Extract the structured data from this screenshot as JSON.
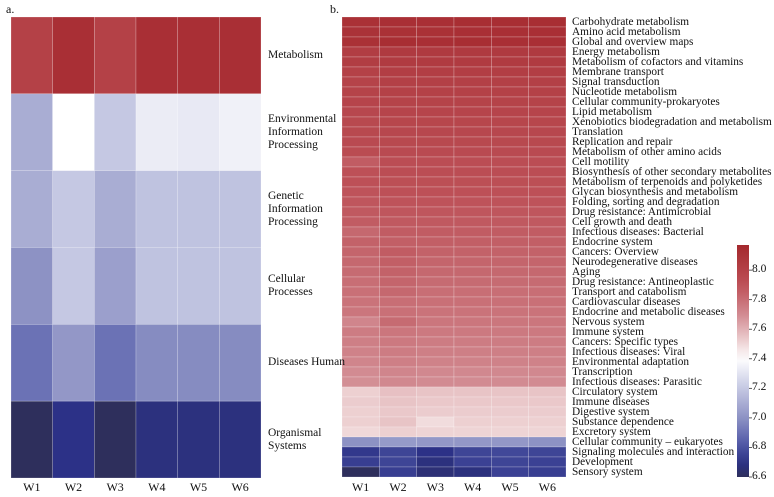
{
  "chart_data": [
    {
      "panel_label": "a.",
      "type": "heatmap",
      "columns": [
        "W1",
        "W2",
        "W3",
        "W4",
        "W5",
        "W6"
      ],
      "rows": [
        {
          "label": "Metabolism",
          "values": [
            8.0,
            8.12,
            8.0,
            8.12,
            8.12,
            8.12
          ]
        },
        {
          "label": "Environmental Information Processing",
          "values": [
            7.1,
            7.4,
            7.2,
            7.33,
            7.32,
            7.35
          ]
        },
        {
          "label": "Genetic Information Processing",
          "values": [
            7.1,
            7.2,
            7.1,
            7.18,
            7.18,
            7.18
          ]
        },
        {
          "label": "Cellular Processes",
          "values": [
            7.0,
            7.2,
            7.05,
            7.18,
            7.18,
            7.18
          ]
        },
        {
          "label": "Diseases Human",
          "values": [
            6.9,
            7.02,
            6.9,
            6.98,
            6.98,
            6.98
          ]
        },
        {
          "label": "Organismal Systems",
          "values": [
            6.6,
            6.7,
            6.6,
            6.68,
            6.68,
            6.68
          ]
        }
      ]
    },
    {
      "panel_label": "b.",
      "type": "heatmap",
      "columns": [
        "W1",
        "W2",
        "W3",
        "W4",
        "W5",
        "W6"
      ],
      "colorbar": {
        "range": [
          6.6,
          8.17
        ],
        "ticks": [
          "8.0",
          "7.8",
          "7.6",
          "7.4",
          "7.2",
          "7.0",
          "6.8",
          "6.6"
        ],
        "colors": {
          "low": "#2e2f5c",
          "mid": "#ffffff",
          "high": "#a4282d"
        }
      },
      "rows": [
        {
          "label": "Carbohydrate metabolism",
          "values": [
            8.11,
            8.12,
            8.12,
            8.13,
            8.13,
            8.13
          ]
        },
        {
          "label": "Amino acid metabolism",
          "values": [
            8.1,
            8.11,
            8.11,
            8.12,
            8.12,
            8.12
          ]
        },
        {
          "label": "Global and overview maps",
          "values": [
            8.11,
            8.13,
            8.12,
            8.13,
            8.12,
            8.12
          ]
        },
        {
          "label": "Energy metabolism",
          "values": [
            8.03,
            8.05,
            8.05,
            8.05,
            8.05,
            8.05
          ]
        },
        {
          "label": "Metabolism of cofactors and vitamins",
          "values": [
            8.03,
            8.04,
            8.04,
            8.04,
            8.04,
            8.04
          ]
        },
        {
          "label": "Membrane transport",
          "values": [
            8.0,
            8.02,
            8.02,
            8.02,
            8.02,
            8.02
          ]
        },
        {
          "label": "Signal transduction",
          "values": [
            7.99,
            8.01,
            8.01,
            8.01,
            8.01,
            8.01
          ]
        },
        {
          "label": "Nucleotide metabolism",
          "values": [
            7.99,
            8.0,
            8.0,
            8.0,
            8.0,
            8.0
          ]
        },
        {
          "label": "Cellular community-prokaryotes",
          "values": [
            7.98,
            7.99,
            7.99,
            7.99,
            7.99,
            7.99
          ]
        },
        {
          "label": "Lipid metabolism",
          "values": [
            7.96,
            7.98,
            7.98,
            7.98,
            7.98,
            7.98
          ]
        },
        {
          "label": "Xenobiotics biodegradation and metabolism",
          "values": [
            7.95,
            7.97,
            7.97,
            7.97,
            7.97,
            7.97
          ]
        },
        {
          "label": "Translation",
          "values": [
            7.95,
            7.96,
            7.96,
            7.96,
            7.96,
            7.96
          ]
        },
        {
          "label": "Replication and repair",
          "values": [
            7.94,
            7.95,
            7.95,
            7.95,
            7.95,
            7.95
          ]
        },
        {
          "label": "Metabolism of other amino acids",
          "values": [
            7.93,
            7.94,
            7.94,
            7.94,
            7.94,
            7.94
          ]
        },
        {
          "label": "Cell motility",
          "values": [
            7.86,
            7.92,
            7.92,
            7.92,
            7.92,
            7.92
          ]
        },
        {
          "label": "Biosynthesis of other secondary metabolites",
          "values": [
            7.9,
            7.92,
            7.92,
            7.92,
            7.92,
            7.92
          ]
        },
        {
          "label": "Metabolism of terpenoids and polyketides",
          "values": [
            7.9,
            7.91,
            7.91,
            7.91,
            7.91,
            7.91
          ]
        },
        {
          "label": "Glycan biosynthesis and metabolism",
          "values": [
            7.89,
            7.9,
            7.9,
            7.9,
            7.9,
            7.9
          ]
        },
        {
          "label": "Folding, sorting and degradation",
          "values": [
            7.88,
            7.89,
            7.89,
            7.89,
            7.89,
            7.89
          ]
        },
        {
          "label": "Drug resistance: Antimicrobial",
          "values": [
            7.87,
            7.88,
            7.88,
            7.88,
            7.88,
            7.88
          ]
        },
        {
          "label": "Cell growth and death",
          "values": [
            7.86,
            7.87,
            7.87,
            7.87,
            7.87,
            7.87
          ]
        },
        {
          "label": "Infectious diseases: Bacterial",
          "values": [
            7.82,
            7.86,
            7.86,
            7.86,
            7.86,
            7.86
          ]
        },
        {
          "label": "Endocrine system",
          "values": [
            7.84,
            7.85,
            7.85,
            7.85,
            7.85,
            7.85
          ]
        },
        {
          "label": "Cancers: Overview",
          "values": [
            7.83,
            7.86,
            7.84,
            7.84,
            7.84,
            7.84
          ]
        },
        {
          "label": "Neurodegenerative diseases",
          "values": [
            7.82,
            7.85,
            7.83,
            7.83,
            7.83,
            7.83
          ]
        },
        {
          "label": "Aging",
          "values": [
            7.81,
            7.84,
            7.82,
            7.82,
            7.82,
            7.82
          ]
        },
        {
          "label": "Drug resistance: Antineoplastic",
          "values": [
            7.8,
            7.83,
            7.81,
            7.81,
            7.81,
            7.81
          ]
        },
        {
          "label": "Transport and catabolism",
          "values": [
            7.79,
            7.82,
            7.8,
            7.8,
            7.8,
            7.8
          ]
        },
        {
          "label": "Cardiovascular diseases",
          "values": [
            7.78,
            7.8,
            7.79,
            7.79,
            7.79,
            7.79
          ]
        },
        {
          "label": "Endocrine and metabolic diseases",
          "values": [
            7.77,
            7.79,
            7.78,
            7.78,
            7.78,
            7.78
          ]
        },
        {
          "label": "Nervous system",
          "values": [
            7.72,
            7.81,
            7.77,
            7.77,
            7.77,
            7.77
          ]
        },
        {
          "label": "Immune system",
          "values": [
            7.75,
            7.77,
            7.76,
            7.76,
            7.76,
            7.76
          ]
        },
        {
          "label": "Cancers: Specific types",
          "values": [
            7.74,
            7.76,
            7.75,
            7.75,
            7.75,
            7.75
          ]
        },
        {
          "label": "Infectious diseases: Viral",
          "values": [
            7.73,
            7.75,
            7.74,
            7.74,
            7.74,
            7.74
          ]
        },
        {
          "label": "Environmental adaptation",
          "values": [
            7.72,
            7.74,
            7.73,
            7.73,
            7.73,
            7.73
          ]
        },
        {
          "label": "Transcription",
          "values": [
            7.7,
            7.72,
            7.71,
            7.71,
            7.71,
            7.71
          ]
        },
        {
          "label": "Infectious diseases: Parasitic",
          "values": [
            7.69,
            7.71,
            7.7,
            7.7,
            7.7,
            7.7
          ]
        },
        {
          "label": "Circulatory system",
          "values": [
            7.52,
            7.56,
            7.55,
            7.55,
            7.55,
            7.55
          ]
        },
        {
          "label": "Immune diseases",
          "values": [
            7.53,
            7.55,
            7.54,
            7.54,
            7.54,
            7.54
          ]
        },
        {
          "label": "Digestive system",
          "values": [
            7.52,
            7.54,
            7.53,
            7.53,
            7.53,
            7.53
          ]
        },
        {
          "label": "Substance dependence",
          "values": [
            7.52,
            7.55,
            7.49,
            7.52,
            7.52,
            7.52
          ]
        },
        {
          "label": "Excretory system",
          "values": [
            7.5,
            7.52,
            7.51,
            7.51,
            7.51,
            7.51
          ]
        },
        {
          "label": "Cellular community – eukaryotes",
          "values": [
            7.0,
            7.03,
            7.02,
            7.02,
            7.02,
            7.0
          ]
        },
        {
          "label": "Signaling molecules and interaction",
          "values": [
            6.72,
            6.76,
            6.7,
            6.76,
            6.77,
            6.76
          ]
        },
        {
          "label": "Development",
          "values": [
            6.74,
            6.76,
            6.68,
            6.75,
            6.76,
            6.75
          ]
        },
        {
          "label": "Sensory system",
          "values": [
            6.6,
            6.74,
            6.66,
            6.68,
            6.75,
            6.74
          ]
        }
      ]
    }
  ]
}
